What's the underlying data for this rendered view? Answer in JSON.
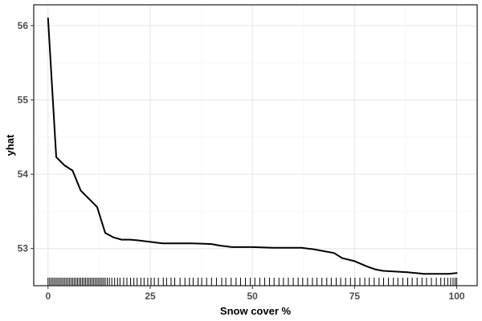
{
  "chart_data": {
    "type": "line",
    "xlabel": "Snow cover %",
    "ylabel": "yhat",
    "xlim": [
      -3.5,
      105
    ],
    "ylim": [
      52.5,
      56.28
    ],
    "x_ticks": [
      0,
      25,
      50,
      75,
      100
    ],
    "x_tick_labels": [
      "0",
      "25",
      "50",
      "75",
      "100"
    ],
    "y_ticks": [
      53,
      54,
      55,
      56
    ],
    "y_tick_labels": [
      "53",
      "54",
      "55",
      "56"
    ],
    "grid": true,
    "legend": "none",
    "series": [
      {
        "x": [
          0,
          2,
          4,
          6,
          8,
          10,
          12,
          14,
          16,
          18,
          20,
          22,
          25,
          28,
          30,
          35,
          40,
          42,
          45,
          50,
          55,
          62,
          65,
          70,
          72,
          75,
          78,
          80,
          82,
          85,
          88,
          90,
          92,
          95,
          98,
          100
        ],
        "y": [
          56.1,
          54.23,
          54.12,
          54.05,
          53.78,
          53.67,
          53.56,
          53.21,
          53.15,
          53.12,
          53.12,
          53.11,
          53.09,
          53.07,
          53.07,
          53.07,
          53.06,
          53.04,
          53.02,
          53.02,
          53.01,
          53.01,
          52.99,
          52.94,
          52.87,
          52.83,
          52.76,
          52.72,
          52.7,
          52.69,
          52.68,
          52.67,
          52.66,
          52.66,
          52.66,
          52.67
        ]
      }
    ],
    "rug_x": [
      0.0,
      0.4,
      0.8,
      1.2,
      1.6,
      2.0,
      2.4,
      2.8,
      3.2,
      3.6,
      4.0,
      4.4,
      4.8,
      5.2,
      5.6,
      6.0,
      6.4,
      6.8,
      7.2,
      7.6,
      8.0,
      8.4,
      8.8,
      9.2,
      9.6,
      10.0,
      10.4,
      10.8,
      11.2,
      11.6,
      12.0,
      12.4,
      12.8,
      13.2,
      13.6,
      14.0,
      14.5,
      15.0,
      15.6,
      16.3,
      17.0,
      17.6,
      18.5,
      19.3,
      20.2,
      21.0,
      21.8,
      22.7,
      23.5,
      24.4,
      25.2,
      26.0,
      27.0,
      28.2,
      29.0,
      30.1,
      31.0,
      32.3,
      33.5,
      34.6,
      35.5,
      36.7,
      37.6,
      38.8,
      40.0,
      41.2,
      42.5,
      43.5,
      44.8,
      46.0,
      47.1,
      48.3,
      49.5,
      50.6,
      51.8,
      53.0,
      54.2,
      55.3,
      56.5,
      57.6,
      58.8,
      60.0,
      61.2,
      62.3,
      63.5,
      64.7,
      65.8,
      67.0,
      68.2,
      69.3,
      70.5,
      71.6,
      72.8,
      74.0,
      75.1,
      76.3,
      77.5,
      78.6,
      79.8,
      81.0,
      82.1,
      83.3,
      84.5,
      85.6,
      86.8,
      88.0,
      89.1,
      90.3,
      91.5,
      92.6,
      93.8,
      95.0,
      96.1,
      97.0,
      97.8,
      98.5,
      99.1,
      99.6,
      100.0
    ]
  }
}
